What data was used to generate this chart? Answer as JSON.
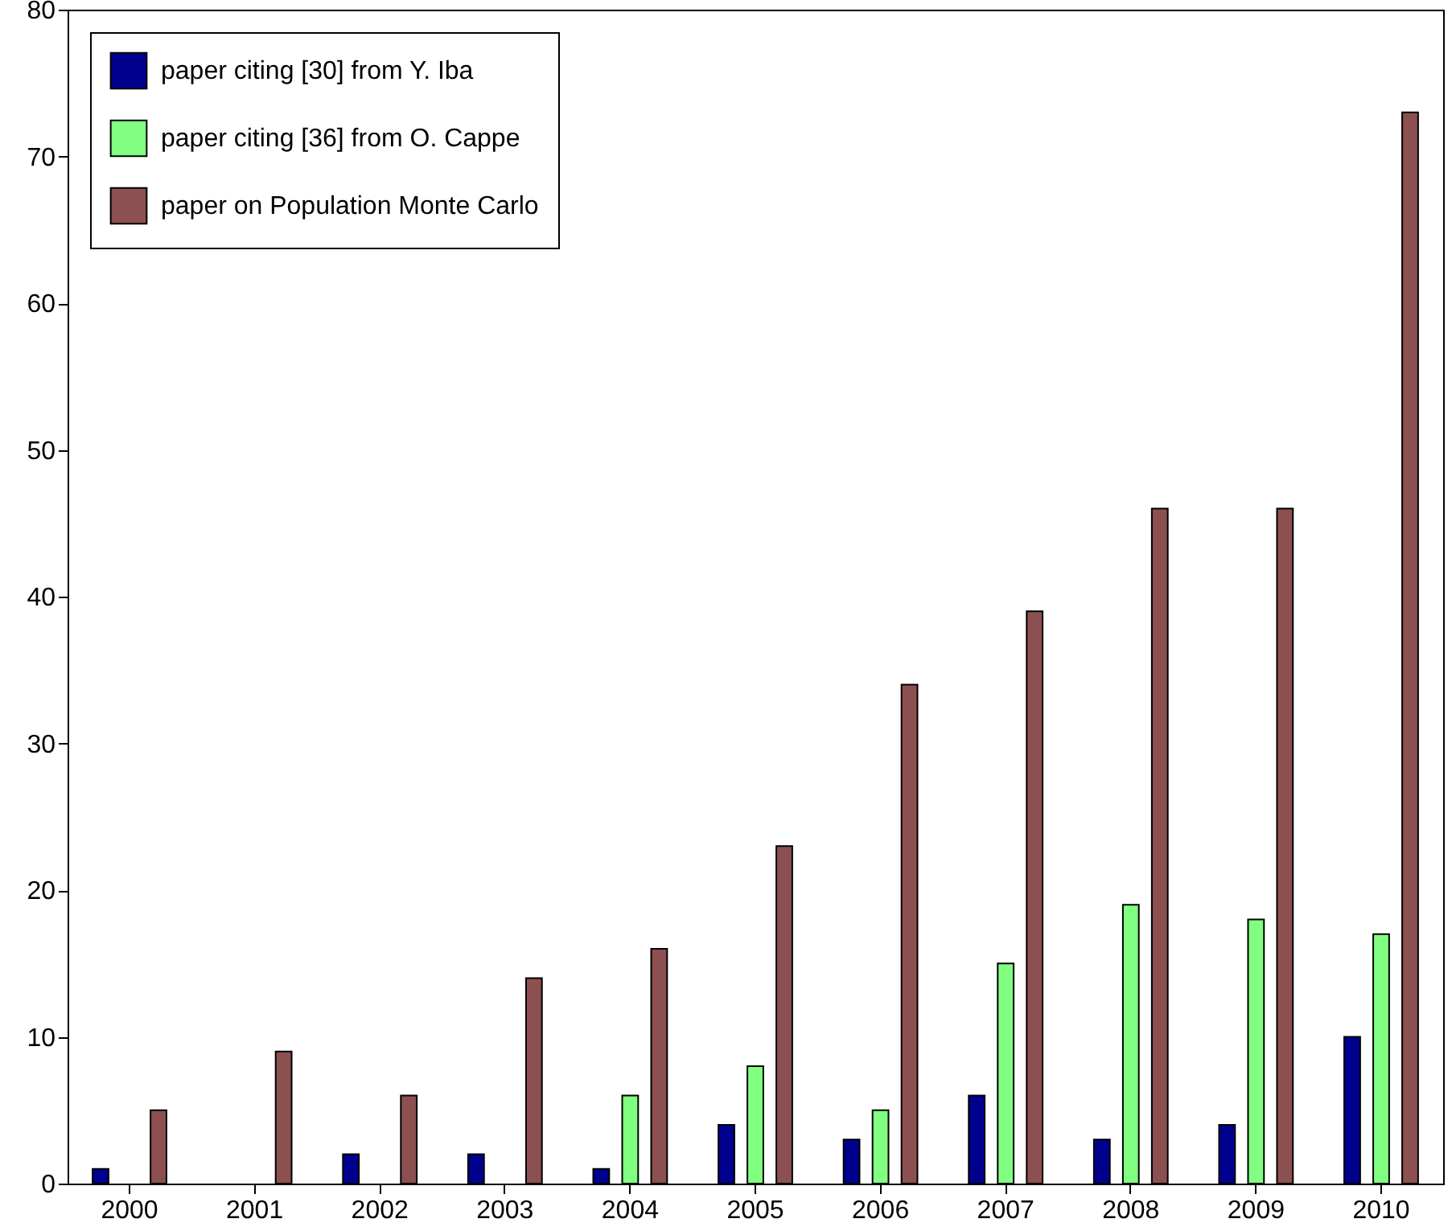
{
  "chart_data": {
    "type": "bar",
    "categories": [
      "2000",
      "2001",
      "2002",
      "2003",
      "2004",
      "2005",
      "2006",
      "2007",
      "2008",
      "2009",
      "2010"
    ],
    "series": [
      {
        "name": "paper citing [30] from Y. Iba",
        "color": "#00008f",
        "values": [
          1,
          0,
          2,
          2,
          1,
          4,
          3,
          6,
          3,
          4,
          10
        ]
      },
      {
        "name": "paper citing [36] from O. Cappe",
        "color": "#80ff80",
        "values": [
          0,
          0,
          0,
          0,
          6,
          8,
          5,
          15,
          19,
          18,
          17
        ]
      },
      {
        "name": "paper on Population Monte Carlo",
        "color": "#8c5050",
        "values": [
          5,
          9,
          6,
          14,
          16,
          23,
          34,
          39,
          46,
          46,
          73
        ]
      }
    ],
    "ylim": [
      0,
      80
    ],
    "yticks": [
      0,
      10,
      20,
      30,
      40,
      50,
      60,
      70,
      80
    ],
    "grid": false,
    "legend": "top left"
  }
}
